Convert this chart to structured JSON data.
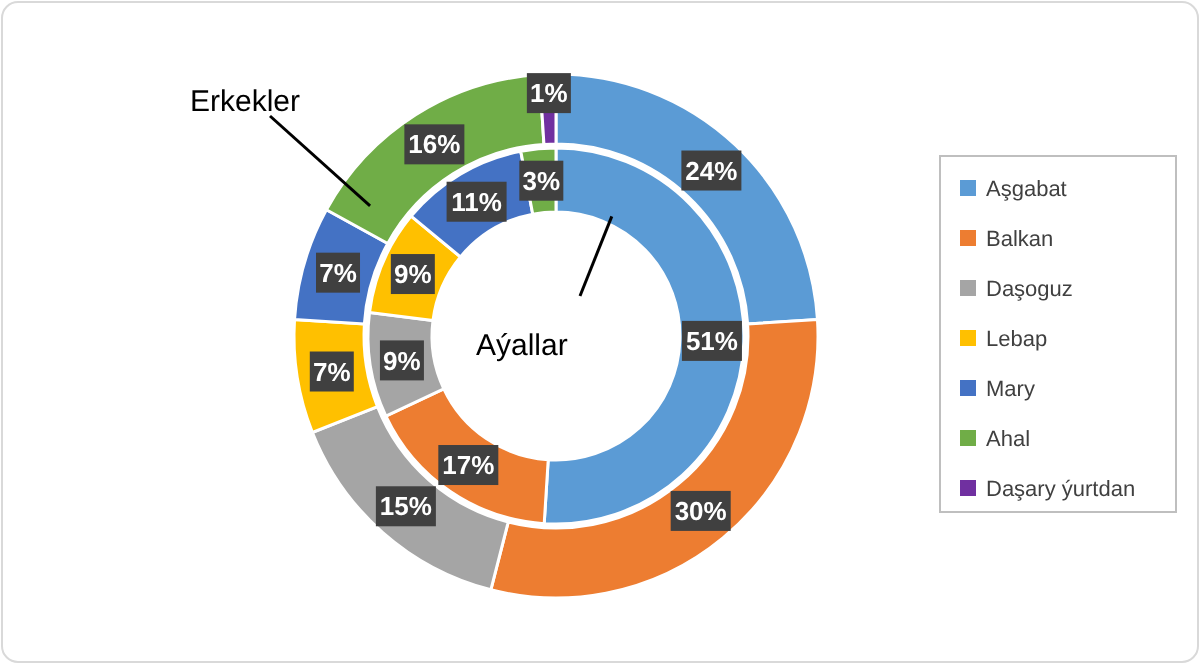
{
  "chart_data": {
    "type": "donut",
    "categories": [
      "Aşgabat",
      "Balkan",
      "Daşoguz",
      "Lebap",
      "Mary",
      "Ahal",
      "Daşary ýurtdan"
    ],
    "colors": [
      "#5b9bd5",
      "#ed7d31",
      "#a5a5a5",
      "#ffc000",
      "#4472c4",
      "#70ad47",
      "#7030a0"
    ],
    "series": [
      {
        "name": "Erkekler",
        "values": [
          24,
          30,
          15,
          7,
          7,
          16,
          1
        ],
        "value_labels": [
          "24%",
          "30%",
          "15%",
          "7%",
          "7%",
          "16%",
          "1%"
        ]
      },
      {
        "name": "Aýallar",
        "values": [
          51,
          17,
          9,
          9,
          11,
          3,
          0
        ],
        "value_labels": [
          "51%",
          "17%",
          "9%",
          "9%",
          "11%",
          "3%",
          null
        ]
      }
    ],
    "legend": "right"
  }
}
